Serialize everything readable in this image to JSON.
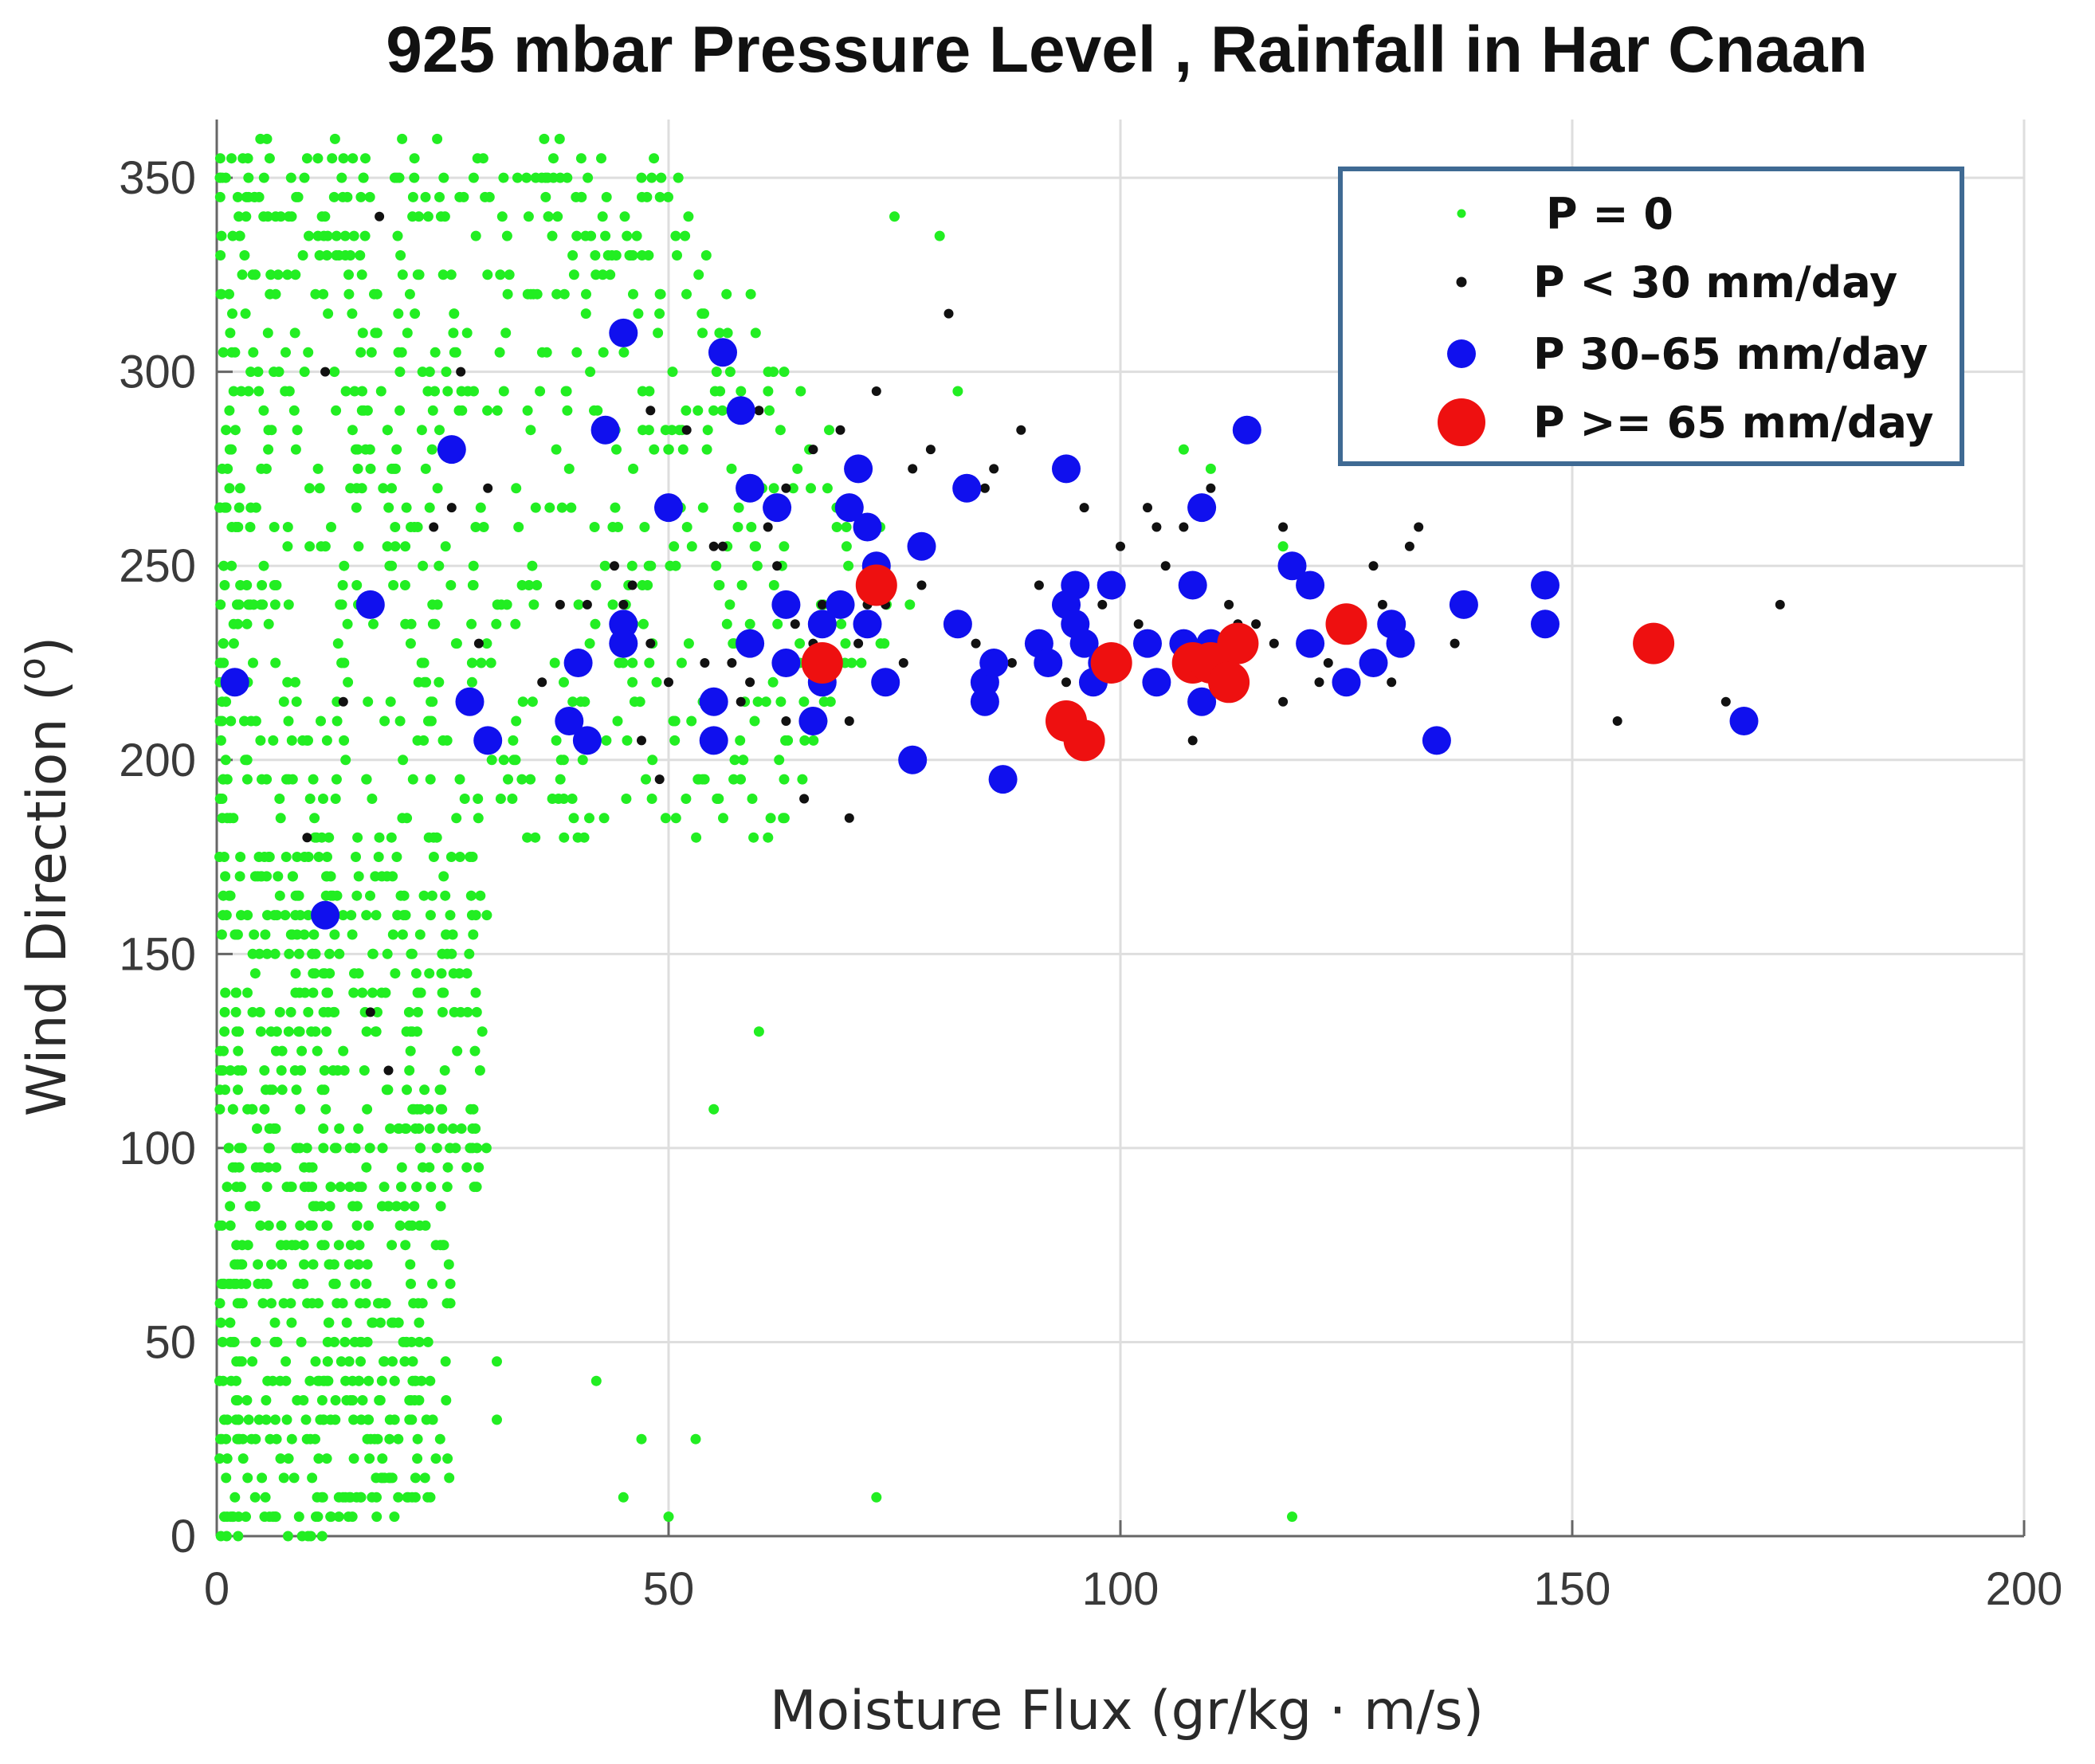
{
  "chart_data": {
    "type": "scatter",
    "title": "925 mbar Pressure Level , Rainfall in Har Cnaan",
    "xlabel": "Moisture Flux (gr/kg · m/s)",
    "ylabel_main": "Wind Direction (",
    "ylabel_sup": "o",
    "ylabel_close": ")",
    "xlim": [
      0,
      200
    ],
    "ylim": [
      0,
      365
    ],
    "xticks": [
      0,
      50,
      100,
      150,
      200
    ],
    "yticks": [
      0,
      50,
      100,
      150,
      200,
      250,
      300,
      350
    ],
    "xtick_labels": [
      "0",
      "50",
      "100",
      "150",
      "200"
    ],
    "ytick_labels": [
      "0",
      "50",
      "100",
      "150",
      "200",
      "250",
      "300",
      "350"
    ],
    "grid": true,
    "legend_position": "top-right",
    "series": [
      {
        "name": "P = 0",
        "color": "#22ee22",
        "marker": "small-dot",
        "generated_cloud": true,
        "outliers": [
          [
            42,
            40
          ],
          [
            47,
            25
          ],
          [
            53,
            25
          ],
          [
            55,
            110
          ],
          [
            60,
            130
          ],
          [
            73,
            10
          ],
          [
            119,
            5
          ],
          [
            75,
            340
          ],
          [
            80,
            335
          ],
          [
            82,
            295
          ],
          [
            107,
            280
          ],
          [
            110,
            275
          ],
          [
            118,
            255
          ],
          [
            50,
            5
          ],
          [
            45,
            10
          ],
          [
            31,
            45
          ],
          [
            31,
            30
          ]
        ]
      },
      {
        "name": "P < 30 mm/day",
        "color": "#111111",
        "marker": "dot",
        "x": [
          18,
          12,
          27,
          81,
          73,
          60,
          52,
          48,
          63,
          66,
          69,
          77,
          79,
          89,
          85,
          86,
          93,
          96,
          103,
          104,
          107,
          110,
          108,
          112,
          115,
          118,
          122,
          129,
          133,
          132,
          137,
          155,
          167,
          173,
          118,
          120,
          130,
          61,
          62,
          67,
          71,
          45,
          48,
          50,
          54,
          58,
          63,
          38,
          30,
          26,
          24,
          14,
          10,
          17,
          19,
          29,
          36,
          39,
          44,
          46,
          47,
          56,
          59,
          64,
          65,
          70,
          74,
          76,
          78,
          82,
          84,
          88,
          91,
          94,
          98,
          100,
          102,
          105,
          108,
          113,
          117,
          123,
          128,
          70,
          66,
          72,
          57,
          55,
          49,
          41
        ],
        "y": [
          340,
          300,
          300,
          315,
          295,
          290,
          285,
          290,
          270,
          280,
          285,
          275,
          280,
          285,
          270,
          275,
          275,
          265,
          265,
          260,
          260,
          270,
          205,
          240,
          235,
          260,
          220,
          240,
          260,
          255,
          230,
          210,
          215,
          240,
          215,
          250,
          220,
          260,
          250,
          240,
          230,
          240,
          230,
          220,
          225,
          215,
          210,
          240,
          270,
          265,
          260,
          215,
          180,
          135,
          120,
          230,
          220,
          225,
          250,
          245,
          205,
          255,
          220,
          235,
          190,
          185,
          240,
          225,
          245,
          270,
          230,
          225,
          245,
          220,
          240,
          255,
          235,
          250,
          245,
          235,
          230,
          225,
          250,
          210,
          230,
          240,
          225,
          255,
          195,
          240
        ]
      },
      {
        "name": "P 30–65 mm/day",
        "color": "#1010ee",
        "marker": "circle-medium",
        "x": [
          2,
          12,
          17,
          26,
          28,
          30,
          39,
          40,
          41,
          43,
          45,
          45,
          45,
          50,
          55,
          55,
          56,
          58,
          59,
          59,
          62,
          63,
          63,
          66,
          67,
          67,
          69,
          70,
          71,
          72,
          72,
          73,
          74,
          77,
          78,
          82,
          83,
          85,
          85,
          86,
          87,
          91,
          92,
          94,
          94,
          95,
          95,
          96,
          97,
          98,
          99,
          103,
          104,
          107,
          108,
          109,
          109,
          110,
          114,
          119,
          121,
          121,
          125,
          128,
          130,
          131,
          135,
          138,
          147,
          147,
          169
        ],
        "y": [
          220,
          160,
          240,
          280,
          215,
          205,
          210,
          225,
          205,
          285,
          310,
          235,
          230,
          265,
          215,
          205,
          305,
          290,
          270,
          230,
          265,
          240,
          225,
          210,
          220,
          235,
          240,
          265,
          275,
          260,
          235,
          250,
          220,
          200,
          255,
          235,
          270,
          220,
          215,
          225,
          195,
          230,
          225,
          240,
          275,
          235,
          245,
          230,
          220,
          225,
          245,
          230,
          220,
          230,
          245,
          215,
          265,
          230,
          285,
          250,
          245,
          230,
          220,
          225,
          235,
          230,
          205,
          240,
          245,
          235,
          210
        ]
      },
      {
        "name": "P >= 65 mm/day",
        "color": "#ee1010",
        "marker": "circle-large",
        "x": [
          67,
          73,
          94,
          96,
          99,
          108,
          110,
          112,
          113,
          125,
          159
        ],
        "y": [
          225,
          245,
          210,
          205,
          225,
          225,
          225,
          220,
          230,
          235,
          230
        ]
      }
    ]
  }
}
